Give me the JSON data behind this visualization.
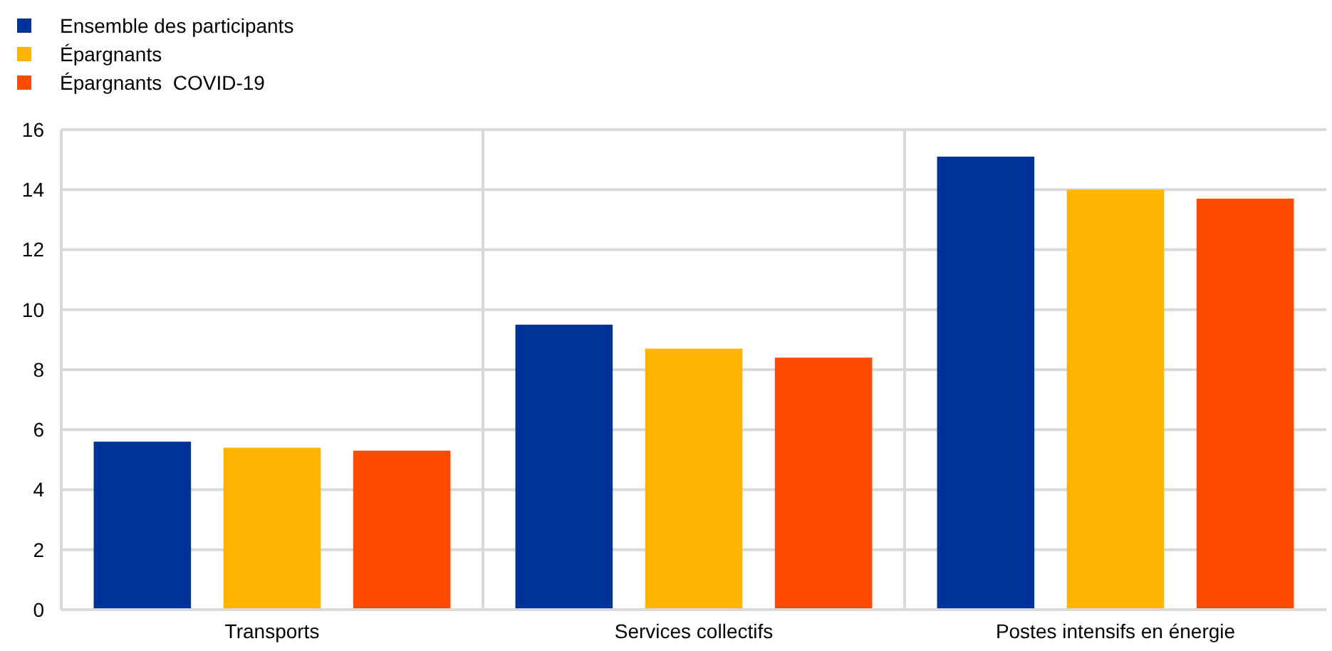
{
  "chart_data": {
    "type": "bar",
    "categories": [
      "Transports",
      "Services collectifs",
      "Postes intensifs en énergie"
    ],
    "series": [
      {
        "name": "Ensemble des participants",
        "color": "#003299",
        "values": [
          5.6,
          9.5,
          15.1
        ]
      },
      {
        "name": "Épargnants",
        "color": "#ffb400",
        "values": [
          5.4,
          8.7,
          14.0
        ]
      },
      {
        "name": "Épargnants  COVID-19",
        "color": "#ff4b00",
        "values": [
          5.3,
          8.4,
          13.7
        ]
      }
    ],
    "ylim": [
      0,
      16
    ],
    "yticks": [
      0,
      2,
      4,
      6,
      8,
      10,
      12,
      14,
      16
    ],
    "grid": true,
    "legend": "top left"
  }
}
